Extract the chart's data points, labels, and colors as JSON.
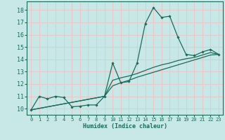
{
  "xlabel": "Humidex (Indice chaleur)",
  "bg_color": "#c8e8e8",
  "grid_color": "#e8c8c8",
  "line_color": "#1a6b5a",
  "xlim": [
    -0.5,
    23.5
  ],
  "ylim": [
    9.5,
    18.7
  ],
  "yticks": [
    10,
    11,
    12,
    13,
    14,
    15,
    16,
    17,
    18
  ],
  "xticks": [
    0,
    1,
    2,
    3,
    4,
    5,
    6,
    7,
    8,
    9,
    10,
    11,
    12,
    13,
    14,
    15,
    16,
    17,
    18,
    19,
    20,
    21,
    22,
    23
  ],
  "series1_x": [
    0,
    1,
    2,
    3,
    4,
    5,
    6,
    7,
    8,
    9,
    10,
    11,
    12,
    13,
    14,
    15,
    16,
    17,
    18,
    19,
    20,
    21,
    22,
    23
  ],
  "series1_y": [
    9.9,
    11.0,
    10.8,
    11.0,
    10.9,
    10.15,
    10.2,
    10.3,
    10.3,
    11.0,
    13.7,
    12.1,
    12.2,
    13.7,
    16.9,
    18.2,
    17.4,
    17.5,
    15.8,
    14.4,
    14.3,
    14.6,
    14.8,
    14.4
  ],
  "series2_x": [
    0,
    9,
    10,
    11,
    12,
    13,
    14,
    15,
    16,
    17,
    18,
    19,
    20,
    21,
    22,
    23
  ],
  "series2_y": [
    9.9,
    11.0,
    12.3,
    12.5,
    12.65,
    12.85,
    13.1,
    13.35,
    13.55,
    13.7,
    13.9,
    14.05,
    14.15,
    14.35,
    14.55,
    14.4
  ],
  "series3_x": [
    0,
    9,
    10,
    11,
    12,
    13,
    14,
    15,
    16,
    17,
    18,
    19,
    20,
    21,
    22,
    23
  ],
  "series3_y": [
    9.9,
    11.0,
    11.85,
    12.1,
    12.3,
    12.55,
    12.75,
    12.95,
    13.15,
    13.35,
    13.55,
    13.75,
    13.95,
    14.15,
    14.35,
    14.4
  ]
}
